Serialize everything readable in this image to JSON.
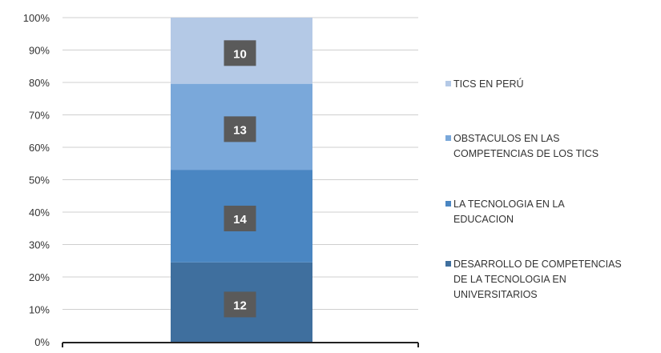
{
  "chart_data": {
    "type": "bar",
    "stacked": true,
    "percent_stacked": true,
    "categories": [
      ""
    ],
    "series": [
      {
        "name": "DESARROLLO DE COMPETENCIAS DE LA TECNOLOGIA EN UNIVERSITARIOS",
        "values": [
          12
        ],
        "color": "#3f6f9e"
      },
      {
        "name": "LA TECNOLOGIA EN LA EDUCACION",
        "values": [
          14
        ],
        "color": "#4a86c2"
      },
      {
        "name": "OBSTACULOS EN LAS COMPETENCIAS DE LOS TICS",
        "values": [
          13
        ],
        "color": "#7aa8da"
      },
      {
        "name": "TICS EN PERÚ",
        "values": [
          10
        ],
        "color": "#b4c9e6"
      }
    ],
    "data_labels": [
      "12",
      "14",
      "13",
      "10"
    ],
    "y_ticks": [
      "0%",
      "10%",
      "20%",
      "30%",
      "40%",
      "50%",
      "60%",
      "70%",
      "80%",
      "90%",
      "100%"
    ],
    "ylim": [
      0,
      100
    ],
    "grid": true,
    "legend_position": "right",
    "title": "",
    "xlabel": "",
    "ylabel": ""
  },
  "legend": [
    {
      "label": "TICS EN PERÚ",
      "color": "#b4c9e6"
    },
    {
      "label": "OBSTACULOS EN LAS\nCOMPETENCIAS DE LOS TICS",
      "color": "#7aa8da"
    },
    {
      "label": "LA TECNOLOGIA EN LA\nEDUCACION",
      "color": "#4a86c2"
    },
    {
      "label": "DESARROLLO DE COMPETENCIAS\nDE LA TECNOLOGIA EN\nUNIVERSITARIOS",
      "color": "#3f6f9e"
    }
  ]
}
